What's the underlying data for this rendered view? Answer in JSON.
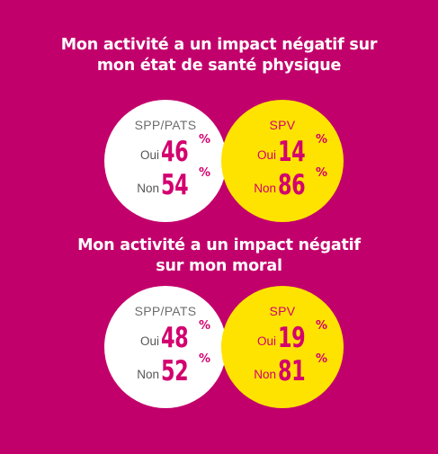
{
  "chart_data": [
    {
      "type": "table",
      "title": "Mon activité a un impact négatif sur mon état de santé physique",
      "title_lines": [
        "Mon activité a un impact négatif sur",
        "mon état de santé physique"
      ],
      "categories": [
        "Oui",
        "Non"
      ],
      "series": [
        {
          "name": "SPP/PATS",
          "values": [
            46,
            54
          ],
          "color": "#ffffff"
        },
        {
          "name": "SPV",
          "values": [
            14,
            86
          ],
          "color": "#ffe300"
        }
      ],
      "unit": "%"
    },
    {
      "type": "table",
      "title": "Mon activité a un impact négatif sur mon moral",
      "title_lines": [
        "Mon activité a un impact négatif",
        "sur mon moral"
      ],
      "categories": [
        "Oui",
        "Non"
      ],
      "series": [
        {
          "name": "SPP/PATS",
          "values": [
            48,
            52
          ],
          "color": "#ffffff"
        },
        {
          "name": "SPV",
          "values": [
            19,
            81
          ],
          "color": "#ffe300"
        }
      ],
      "unit": "%"
    }
  ],
  "colors": {
    "background": "#c2006b",
    "accent": "#d3006f",
    "spv_circle": "#ffe300",
    "spp_circle": "#ffffff"
  }
}
